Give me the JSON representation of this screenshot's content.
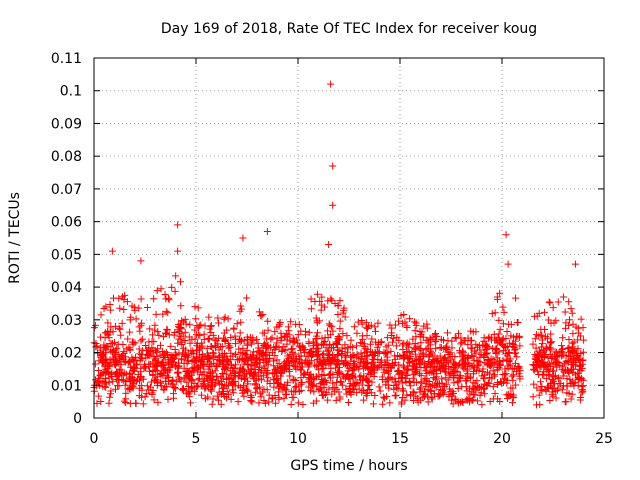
{
  "chart_data": {
    "type": "scatter",
    "title": "Day 169 of 2018, Rate Of TEC Index for receiver koug",
    "xlabel": "GPS time / hours",
    "ylabel": "ROTI / TECUs",
    "xlim": [
      0,
      25
    ],
    "ylim": [
      0,
      0.11
    ],
    "xticks": [
      0,
      5,
      10,
      15,
      20,
      25
    ],
    "xtick_labels": [
      "0",
      "5",
      "10",
      "15",
      "20",
      "25"
    ],
    "yticks": [
      0,
      0.01,
      0.02,
      0.03,
      0.04,
      0.05,
      0.06,
      0.07,
      0.08,
      0.09,
      0.1,
      0.11
    ],
    "ytick_labels": [
      "0",
      "0.01",
      "0.02",
      "0.03",
      "0.04",
      "0.05",
      "0.06",
      "0.07",
      "0.08",
      "0.09",
      "0.1",
      "0.11"
    ],
    "grid": true,
    "marker": "+",
    "color": "#ff0000",
    "x_data_range": [
      0,
      24
    ],
    "gaps": [
      [
        20.9,
        21.5
      ]
    ],
    "notable_points": [
      {
        "x": 11.6,
        "y": 0.102
      },
      {
        "x": 11.7,
        "y": 0.077
      },
      {
        "x": 11.7,
        "y": 0.065
      },
      {
        "x": 4.1,
        "y": 0.059
      },
      {
        "x": 7.3,
        "y": 0.055
      },
      {
        "x": 8.5,
        "y": 0.057
      },
      {
        "x": 20.2,
        "y": 0.056
      },
      {
        "x": 0.9,
        "y": 0.051
      },
      {
        "x": 4.1,
        "y": 0.051
      },
      {
        "x": 11.5,
        "y": 0.053
      },
      {
        "x": 23.6,
        "y": 0.047
      },
      {
        "x": 2.3,
        "y": 0.048
      },
      {
        "x": 20.3,
        "y": 0.047
      }
    ],
    "series": [
      {
        "name": "ROTI",
        "x": [
          0,
          1,
          2,
          3,
          4,
          5,
          6,
          7,
          8,
          9,
          10,
          11,
          12,
          13,
          14,
          15,
          16,
          17,
          18,
          19,
          20,
          21,
          22,
          23,
          24
        ],
        "median": [
          0.015,
          0.016,
          0.014,
          0.016,
          0.017,
          0.016,
          0.015,
          0.015,
          0.014,
          0.015,
          0.015,
          0.016,
          0.016,
          0.015,
          0.014,
          0.015,
          0.015,
          0.014,
          0.014,
          0.014,
          0.017,
          0.016,
          0.015,
          0.016,
          0.015
        ],
        "upper": [
          0.028,
          0.04,
          0.035,
          0.04,
          0.045,
          0.035,
          0.03,
          0.04,
          0.035,
          0.03,
          0.03,
          0.04,
          0.038,
          0.03,
          0.03,
          0.035,
          0.03,
          0.028,
          0.027,
          0.03,
          0.04,
          0.035,
          0.035,
          0.038,
          0.03
        ]
      }
    ]
  }
}
